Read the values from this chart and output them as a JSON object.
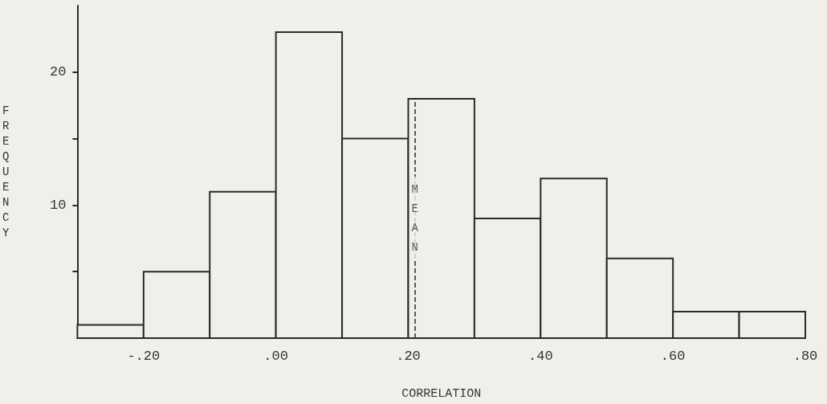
{
  "chart_data": {
    "type": "histogram",
    "xlabel": "CORRELATION",
    "ylabel": "FREQUENCY",
    "bins": [
      -0.3,
      -0.2,
      -0.1,
      0,
      0.1,
      0.2,
      0.3,
      0.4,
      0.5,
      0.6,
      0.7,
      0.8
    ],
    "values": [
      1,
      5,
      11,
      23,
      15,
      18,
      9,
      12,
      6,
      2,
      2
    ],
    "color": "#f0f0ea",
    "xlim": [
      -0.3,
      0.8
    ],
    "xticks": [
      {
        "value": -0.2,
        "label": "-.20"
      },
      {
        "value": 0,
        "label": ".00"
      },
      {
        "value": 0.2,
        "label": ".20"
      },
      {
        "value": 0.4,
        "label": ".40"
      },
      {
        "value": 0.6,
        "label": ".60"
      },
      {
        "value": 0.8,
        "label": ".80"
      }
    ],
    "ylim": [
      0,
      25
    ],
    "yticks": [
      {
        "value": 5,
        "label": null
      },
      10,
      {
        "value": 15,
        "label": null
      },
      20
    ],
    "ref_lines": [
      {
        "axis": "x",
        "value": 0.21,
        "label": "MEAN",
        "line_style": "dashed"
      }
    ],
    "grid": false
  }
}
